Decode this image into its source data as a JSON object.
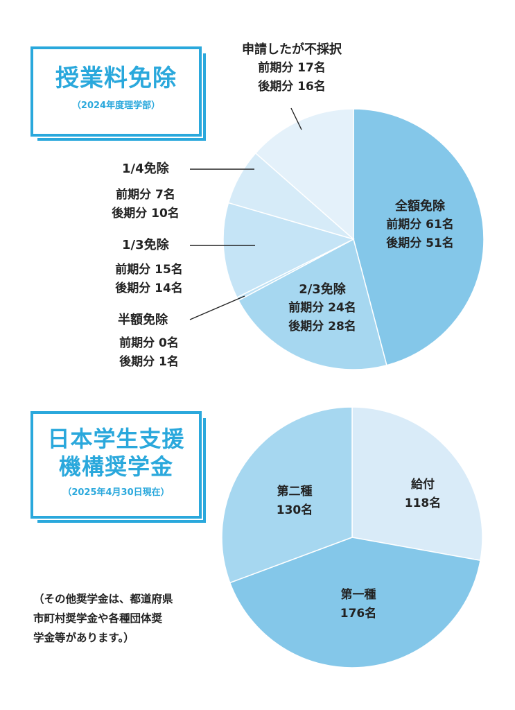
{
  "fee_waiver": {
    "title": "授業料免除",
    "subtitle": "（2024年度理学部）",
    "chart_data": {
      "type": "pie",
      "title": "授業料免除",
      "subtitle": "（2024年度理学部）",
      "slices": [
        {
          "label": "全額免除",
          "values": [
            61,
            51
          ],
          "value": 112,
          "color": "#84c7e9",
          "line1": "前期分 61名",
          "line2": "後期分 51名"
        },
        {
          "label": "2/3免除",
          "values": [
            24,
            28
          ],
          "value": 52,
          "color": "#a6d7f0",
          "line1": "前期分 24名",
          "line2": "後期分 28名"
        },
        {
          "label": "半額免除",
          "values": [
            0,
            1
          ],
          "value": 1,
          "color": "#bde1f4",
          "line1": "前期分 0名",
          "line2": "後期分 1名"
        },
        {
          "label": "1/3免除",
          "values": [
            15,
            14
          ],
          "value": 29,
          "color": "#c5e4f6",
          "line1": "前期分 15名",
          "line2": "後期分 14名"
        },
        {
          "label": "1/4免除",
          "values": [
            7,
            10
          ],
          "value": 17,
          "color": "#d6ebf8",
          "line1": "前期分 7名",
          "line2": "後期分 10名"
        },
        {
          "label": "申請したが不採択",
          "values": [
            17,
            16
          ],
          "value": 33,
          "color": "#e4f1fa",
          "line1": "前期分 17名",
          "line2": "後期分 16名"
        }
      ]
    }
  },
  "jasso": {
    "title_line1": "日本学生支援",
    "title_line2": "機構奨学金",
    "subtitle": "（2025年4月30日現在）",
    "chart_data": {
      "type": "pie",
      "title": "日本学生支援機構奨学金",
      "subtitle": "（2025年4月30日現在）",
      "slices": [
        {
          "label": "給付",
          "value": 118,
          "color": "#d9ebf8",
          "text": "118名"
        },
        {
          "label": "第一種",
          "value": 176,
          "color": "#84c7e9",
          "text": "176名"
        },
        {
          "label": "第二種",
          "value": 130,
          "color": "#a6d7f0",
          "text": "130名"
        }
      ]
    }
  },
  "note": {
    "line1": "（その他奨学金は、都道府県",
    "line2": "市町村奨学金や各種団体奨",
    "line3": "学金等があります。）"
  },
  "colors": {
    "accent": "#2aa8dc"
  }
}
